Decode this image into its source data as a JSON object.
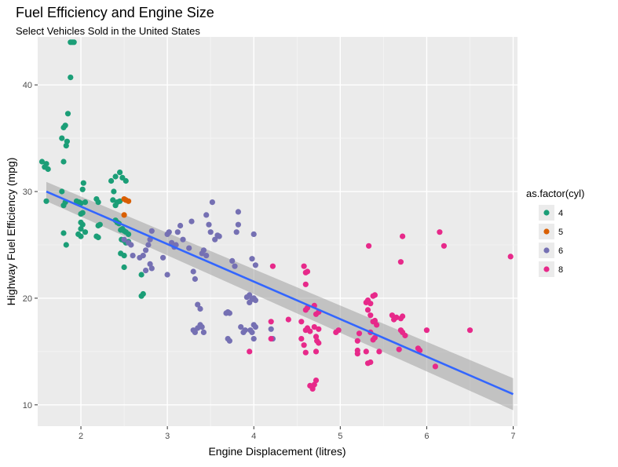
{
  "chart_data": {
    "type": "scatter",
    "title": "Fuel Efficiency and Engine Size",
    "subtitle": "Select Vehicles Sold in the United States",
    "xlabel": "Engine Displacement (litres)",
    "ylabel": "Highway Fuel Efficiency (mpg)",
    "xlim": [
      1.5,
      7.05
    ],
    "ylim": [
      8,
      44.5
    ],
    "x_ticks": [
      2,
      3,
      4,
      5,
      6,
      7
    ],
    "y_ticks": [
      10,
      20,
      30,
      40
    ],
    "grid": true,
    "legend": {
      "title": "as.factor(cyl)",
      "position": "right",
      "items": [
        {
          "label": "4",
          "color": "#1b9e77"
        },
        {
          "label": "5",
          "color": "#d95f02"
        },
        {
          "label": "6",
          "color": "#7570b3"
        },
        {
          "label": "8",
          "color": "#e7298a"
        }
      ]
    },
    "series": [
      {
        "name": "4",
        "color": "#1b9e77",
        "points": [
          [
            1.55,
            32.8
          ],
          [
            1.58,
            32.3
          ],
          [
            1.6,
            32.6
          ],
          [
            1.62,
            32.1
          ],
          [
            1.6,
            29.1
          ],
          [
            1.78,
            30.0
          ],
          [
            1.8,
            28.7
          ],
          [
            1.82,
            29.0
          ],
          [
            1.8,
            26.1
          ],
          [
            1.83,
            25.0
          ],
          [
            1.78,
            35.0
          ],
          [
            1.8,
            36.0
          ],
          [
            1.82,
            36.2
          ],
          [
            1.83,
            34.3
          ],
          [
            1.84,
            34.7
          ],
          [
            1.85,
            37.3
          ],
          [
            1.8,
            32.8
          ],
          [
            1.88,
            44.0
          ],
          [
            1.9,
            44.0
          ],
          [
            1.92,
            44.0
          ],
          [
            1.88,
            40.7
          ],
          [
            1.95,
            29.1
          ],
          [
            1.98,
            29.0
          ],
          [
            2.0,
            28.9
          ],
          [
            2.0,
            27.9
          ],
          [
            2.02,
            28.0
          ],
          [
            1.97,
            26.0
          ],
          [
            2.0,
            26.5
          ],
          [
            2.02,
            26.9
          ],
          [
            2.05,
            26.2
          ],
          [
            2.0,
            25.8
          ],
          [
            2.02,
            30.2
          ],
          [
            2.03,
            30.8
          ],
          [
            2.05,
            29.0
          ],
          [
            2.0,
            27.1
          ],
          [
            2.18,
            29.3
          ],
          [
            2.2,
            29.0
          ],
          [
            2.2,
            26.8
          ],
          [
            2.22,
            26.9
          ],
          [
            2.18,
            25.8
          ],
          [
            2.2,
            25.7
          ],
          [
            2.35,
            31.0
          ],
          [
            2.38,
            30.0
          ],
          [
            2.4,
            31.4
          ],
          [
            2.45,
            31.8
          ],
          [
            2.48,
            31.3
          ],
          [
            2.52,
            31.0
          ],
          [
            2.37,
            29.2
          ],
          [
            2.4,
            28.7
          ],
          [
            2.42,
            29.0
          ],
          [
            2.45,
            29.1
          ],
          [
            2.4,
            27.3
          ],
          [
            2.42,
            27.1
          ],
          [
            2.44,
            27.0
          ],
          [
            2.46,
            26.4
          ],
          [
            2.48,
            26.5
          ],
          [
            2.5,
            26.3
          ],
          [
            2.52,
            26.2
          ],
          [
            2.55,
            26.0
          ],
          [
            2.47,
            25.5
          ],
          [
            2.5,
            25.4
          ],
          [
            2.52,
            25.2
          ],
          [
            2.55,
            25.3
          ],
          [
            2.5,
            24.0
          ],
          [
            2.46,
            24.2
          ],
          [
            2.5,
            22.9
          ],
          [
            2.7,
            22.2
          ],
          [
            2.7,
            20.2
          ],
          [
            2.72,
            20.4
          ]
        ]
      },
      {
        "name": "5",
        "color": "#d95f02",
        "points": [
          [
            2.5,
            29.3
          ],
          [
            2.52,
            29.2
          ],
          [
            2.55,
            29.1
          ],
          [
            2.5,
            27.8
          ]
        ]
      },
      {
        "name": "6",
        "color": "#7570b3",
        "points": [
          [
            2.5,
            25.5
          ],
          [
            2.55,
            25.2
          ],
          [
            2.58,
            25.0
          ],
          [
            2.6,
            24.0
          ],
          [
            2.68,
            23.8
          ],
          [
            2.72,
            24.0
          ],
          [
            2.75,
            24.5
          ],
          [
            2.78,
            25.0
          ],
          [
            2.8,
            25.5
          ],
          [
            2.82,
            26.3
          ],
          [
            2.75,
            22.6
          ],
          [
            2.8,
            23.2
          ],
          [
            2.82,
            22.8
          ],
          [
            2.95,
            23.8
          ],
          [
            3.0,
            22.2
          ],
          [
            3.0,
            26.0
          ],
          [
            3.02,
            26.2
          ],
          [
            3.05,
            25.2
          ],
          [
            3.08,
            24.8
          ],
          [
            3.1,
            25.0
          ],
          [
            3.12,
            26.2
          ],
          [
            3.15,
            26.8
          ],
          [
            3.18,
            25.5
          ],
          [
            3.25,
            24.7
          ],
          [
            3.28,
            27.2
          ],
          [
            3.3,
            22.5
          ],
          [
            3.32,
            21.8
          ],
          [
            3.35,
            19.4
          ],
          [
            3.38,
            19.0
          ],
          [
            3.3,
            17.0
          ],
          [
            3.32,
            16.8
          ],
          [
            3.35,
            17.2
          ],
          [
            3.38,
            17.5
          ],
          [
            3.4,
            17.3
          ],
          [
            3.42,
            16.8
          ],
          [
            3.4,
            24.2
          ],
          [
            3.42,
            24.5
          ],
          [
            3.45,
            24.0
          ],
          [
            3.45,
            27.8
          ],
          [
            3.48,
            26.9
          ],
          [
            3.5,
            26.2
          ],
          [
            3.52,
            29.0
          ],
          [
            3.55,
            25.5
          ],
          [
            3.58,
            25.9
          ],
          [
            3.6,
            25.8
          ],
          [
            3.68,
            18.6
          ],
          [
            3.7,
            18.7
          ],
          [
            3.72,
            18.6
          ],
          [
            3.7,
            16.2
          ],
          [
            3.72,
            16.0
          ],
          [
            3.75,
            23.5
          ],
          [
            3.78,
            23.0
          ],
          [
            3.8,
            26.2
          ],
          [
            3.82,
            26.9
          ],
          [
            3.82,
            28.1
          ],
          [
            3.85,
            17.3
          ],
          [
            3.88,
            16.8
          ],
          [
            3.9,
            17.0
          ],
          [
            3.92,
            20.1
          ],
          [
            3.95,
            20.3
          ],
          [
            3.95,
            19.6
          ],
          [
            3.98,
            19.9
          ],
          [
            4.0,
            20.0
          ],
          [
            4.02,
            19.8
          ],
          [
            3.96,
            17.0
          ],
          [
            3.98,
            16.8
          ],
          [
            4.0,
            17.5
          ],
          [
            4.02,
            17.3
          ],
          [
            4.0,
            16.2
          ],
          [
            3.98,
            23.7
          ],
          [
            4.0,
            26.0
          ],
          [
            4.02,
            23.1
          ],
          [
            4.2,
            17.1
          ],
          [
            4.22,
            16.2
          ]
        ]
      },
      {
        "name": "8",
        "color": "#e7298a",
        "points": [
          [
            3.95,
            15.0
          ],
          [
            4.2,
            17.8
          ],
          [
            4.2,
            16.2
          ],
          [
            4.22,
            23.0
          ],
          [
            4.4,
            18.0
          ],
          [
            4.55,
            17.8
          ],
          [
            4.55,
            16.2
          ],
          [
            4.58,
            15.6
          ],
          [
            4.6,
            14.9
          ],
          [
            4.58,
            23.0
          ],
          [
            4.6,
            22.4
          ],
          [
            4.62,
            22.5
          ],
          [
            4.6,
            21.3
          ],
          [
            4.6,
            18.9
          ],
          [
            4.62,
            19.1
          ],
          [
            4.6,
            17.0
          ],
          [
            4.62,
            17.2
          ],
          [
            4.65,
            16.9
          ],
          [
            4.65,
            11.8
          ],
          [
            4.68,
            11.5
          ],
          [
            4.7,
            11.9
          ],
          [
            4.72,
            12.3
          ],
          [
            4.68,
            11.7
          ],
          [
            4.7,
            19.3
          ],
          [
            4.72,
            18.5
          ],
          [
            4.75,
            18.7
          ],
          [
            4.7,
            17.3
          ],
          [
            4.72,
            16.4
          ],
          [
            4.75,
            17.1
          ],
          [
            4.72,
            15.0
          ],
          [
            4.75,
            15.8
          ],
          [
            4.73,
            16.0
          ],
          [
            4.95,
            16.8
          ],
          [
            4.98,
            17.0
          ],
          [
            5.2,
            16.0
          ],
          [
            5.2,
            15.1
          ],
          [
            5.2,
            14.8
          ],
          [
            5.22,
            16.7
          ],
          [
            5.3,
            19.6
          ],
          [
            5.32,
            19.8
          ],
          [
            5.35,
            19.5
          ],
          [
            5.38,
            20.2
          ],
          [
            5.4,
            20.3
          ],
          [
            5.32,
            18.9
          ],
          [
            5.35,
            18.4
          ],
          [
            5.38,
            17.8
          ],
          [
            5.4,
            17.9
          ],
          [
            5.42,
            17.5
          ],
          [
            5.35,
            16.8
          ],
          [
            5.38,
            16.1
          ],
          [
            5.4,
            16.3
          ],
          [
            5.3,
            15.0
          ],
          [
            5.32,
            13.9
          ],
          [
            5.35,
            14.0
          ],
          [
            5.33,
            24.9
          ],
          [
            5.45,
            15.0
          ],
          [
            5.6,
            18.4
          ],
          [
            5.62,
            18.0
          ],
          [
            5.65,
            18.2
          ],
          [
            5.7,
            18.1
          ],
          [
            5.72,
            18.3
          ],
          [
            5.7,
            17.0
          ],
          [
            5.72,
            16.8
          ],
          [
            5.75,
            16.5
          ],
          [
            5.68,
            15.2
          ],
          [
            5.7,
            23.4
          ],
          [
            5.72,
            25.8
          ],
          [
            5.9,
            15.3
          ],
          [
            5.92,
            15.1
          ],
          [
            6.0,
            17.0
          ],
          [
            6.1,
            13.6
          ],
          [
            6.15,
            26.2
          ],
          [
            6.2,
            24.9
          ],
          [
            6.5,
            17.0
          ],
          [
            6.97,
            23.9
          ]
        ]
      }
    ],
    "trend": {
      "type": "lm",
      "color": "#3366ff",
      "band_color": "#999999",
      "x": [
        1.6,
        7.0
      ],
      "y": [
        30.0,
        11.0
      ],
      "ci_low": [
        29.1,
        9.5
      ],
      "ci_high": [
        30.9,
        12.5
      ]
    }
  }
}
